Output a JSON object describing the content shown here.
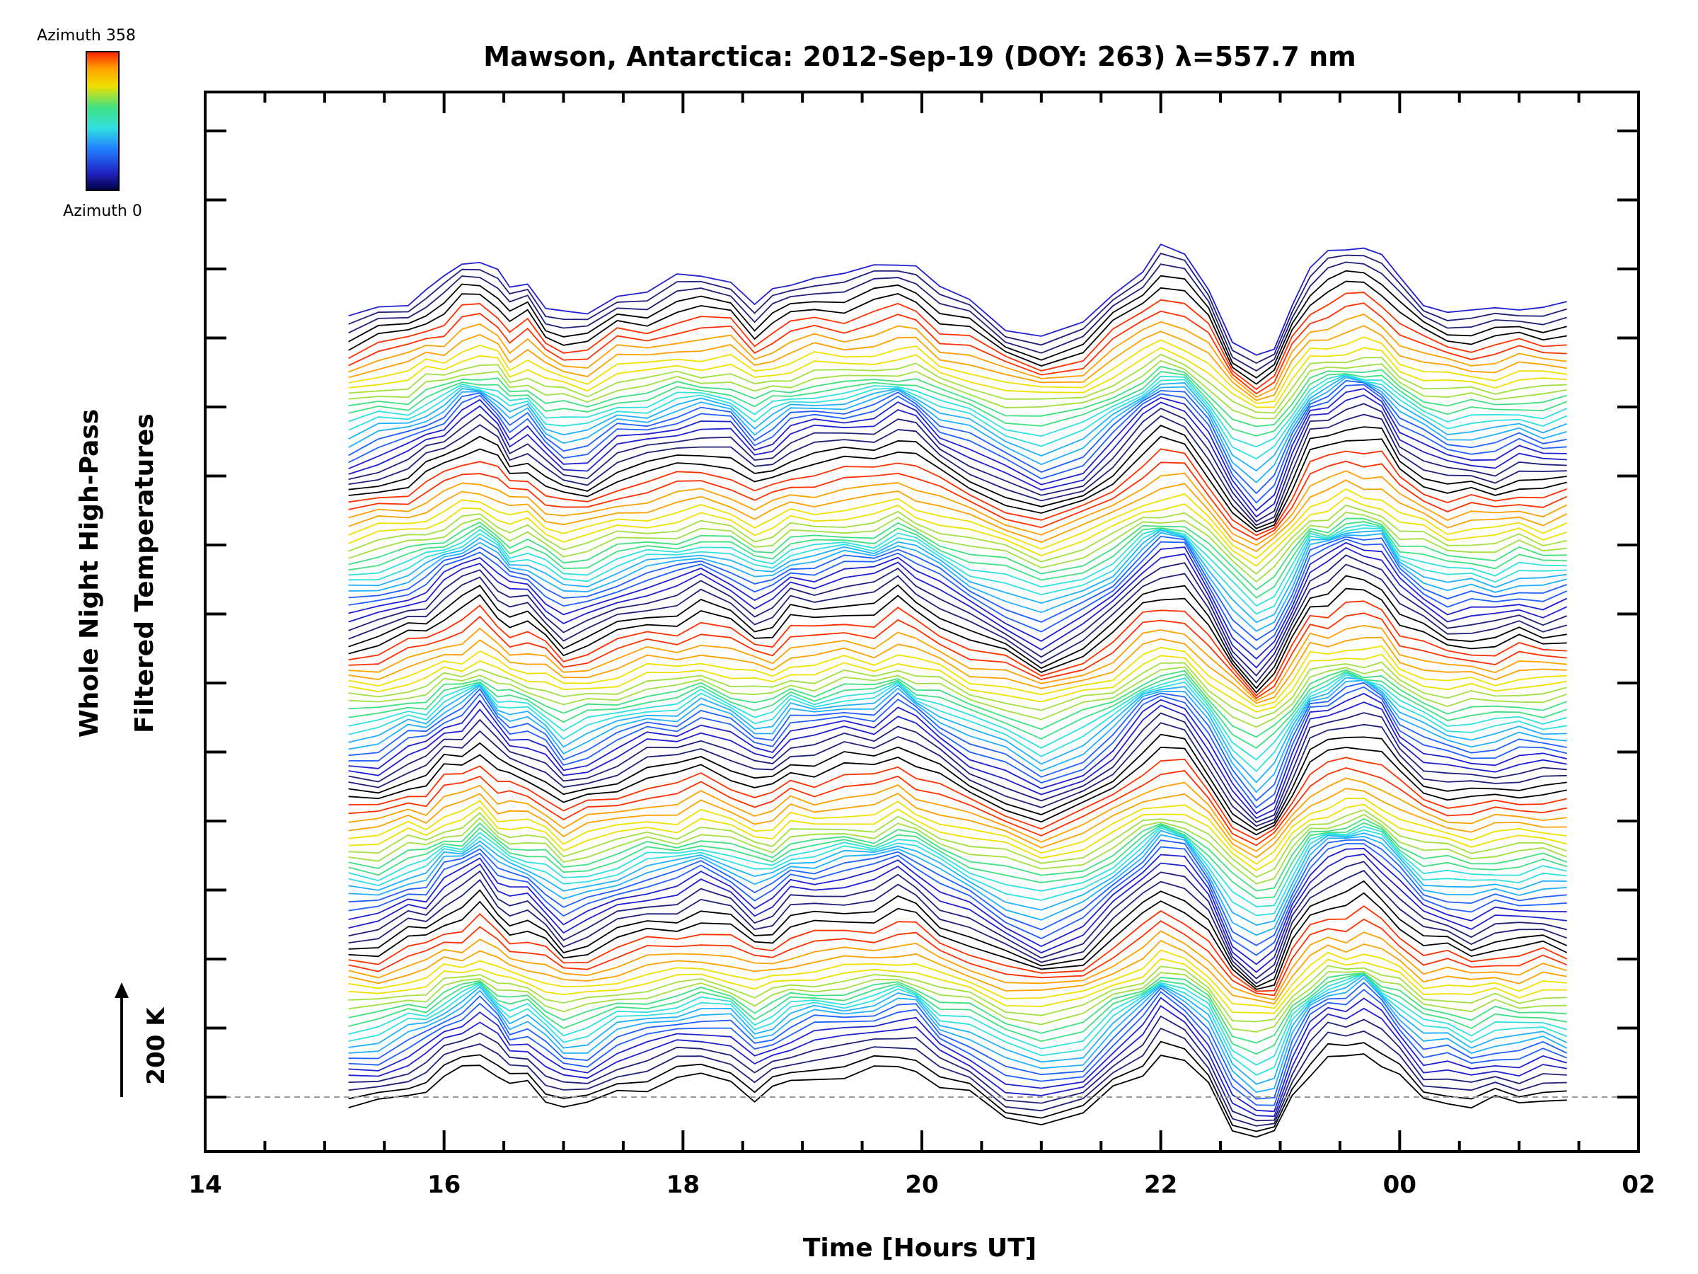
{
  "chart_data": {
    "type": "line",
    "title": "Mawson, Antarctica: 2012-Sep-19 (DOY: 263) λ=557.7 nm",
    "xlabel": "Time [Hours UT]",
    "ylabel_line1": "Whole Night High-Pass",
    "ylabel_line2": "Filtered Temperatures",
    "x_ticks": [
      "14",
      "16",
      "18",
      "20",
      "22",
      "00",
      "02"
    ],
    "x_tick_hours": [
      14,
      16,
      18,
      20,
      22,
      24,
      26
    ],
    "xlim": [
      14,
      26
    ],
    "data_time_range": [
      15.2,
      25.4
    ],
    "stack_count": 115,
    "scale_bar_label": "200 K",
    "colorbar": {
      "top_label": "Azimuth 358",
      "bottom_label": "Azimuth 0",
      "min": 0,
      "max": 358
    },
    "baseline": "dashed",
    "grid": false,
    "palette": [
      "#000000",
      "#20207a",
      "#2020d0",
      "#2060ff",
      "#20b0ff",
      "#30e0e0",
      "#40e080",
      "#a0e040",
      "#f0e000",
      "#ffa000",
      "#ff3000"
    ],
    "profile_times": [
      15.2,
      15.45,
      15.7,
      15.85,
      16.0,
      16.15,
      16.3,
      16.45,
      16.55,
      16.7,
      16.85,
      17.0,
      17.2,
      17.45,
      17.7,
      17.95,
      18.15,
      18.4,
      18.6,
      18.75,
      18.9,
      19.1,
      19.35,
      19.6,
      19.8,
      19.95,
      20.15,
      20.4,
      20.7,
      21.0,
      21.35,
      21.6,
      21.85,
      22.0,
      22.2,
      22.4,
      22.6,
      22.8,
      22.95,
      23.1,
      23.25,
      23.4,
      23.55,
      23.7,
      23.85,
      24.0,
      24.2,
      24.4,
      24.6,
      24.8,
      25.0,
      25.2,
      25.4
    ],
    "wave_profile": [
      0,
      8,
      25,
      35,
      55,
      70,
      85,
      60,
      40,
      45,
      20,
      0,
      5,
      30,
      40,
      50,
      60,
      50,
      20,
      30,
      50,
      55,
      60,
      65,
      80,
      70,
      40,
      20,
      -10,
      -30,
      -10,
      30,
      70,
      95,
      85,
      40,
      -30,
      -60,
      -45,
      20,
      70,
      85,
      95,
      100,
      85,
      50,
      20,
      10,
      5,
      10,
      15,
      15,
      15
    ],
    "wave_amplitude_K": 200
  }
}
